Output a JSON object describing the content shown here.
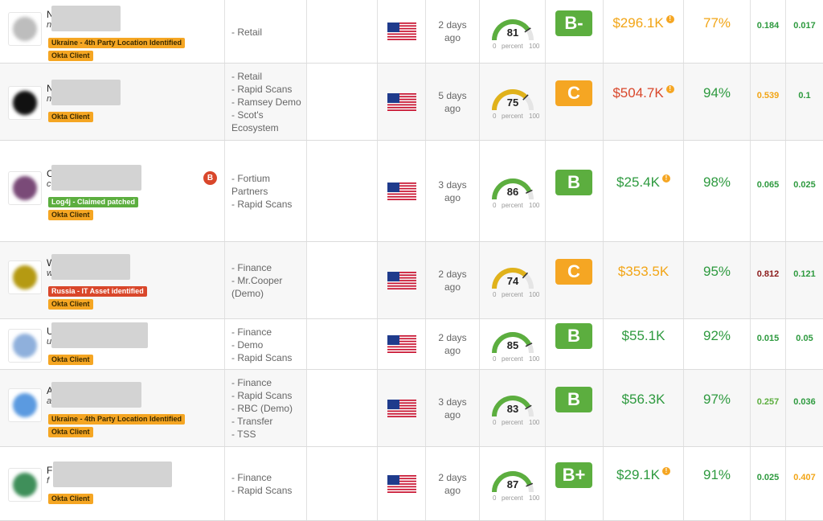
{
  "colors": {
    "green": "#2e9a3f",
    "amber": "#f2a516",
    "orange_grade": "#f5a623",
    "green_grade": "#5cae3f",
    "red": "#d9472b",
    "dark_red": "#8b1a1a",
    "light_green": "#5cae3f"
  },
  "gauge_axis": {
    "lo": "0",
    "mid": "percent",
    "hi": "100"
  },
  "rows": [
    {
      "name": "N",
      "sub": "n",
      "badges": [
        {
          "text": "Ukraine - 4th Party Location Identified",
          "color": "orange"
        },
        {
          "text": "Okta Client",
          "color": "orange"
        }
      ],
      "tags": [
        "- Retail"
      ],
      "days": "2 days",
      "ago": "ago",
      "score": "81",
      "score_num": 81,
      "grade": "B-",
      "grade_color": "#5cae3f",
      "cost": "$296.1K",
      "cost_color": "#f2a516",
      "cost_info": true,
      "pct": "77%",
      "pct_color": "#f2a516",
      "m1": "0.184",
      "m1_color": "#2e9a3f",
      "m2": "0.017",
      "m2_color": "#2e9a3f",
      "avatar_color": "#bdbdbd"
    },
    {
      "name": "N",
      "sub": "n",
      "badges": [
        {
          "text": "Okta Client",
          "color": "orange"
        }
      ],
      "tags": [
        "- Retail",
        "- Rapid Scans",
        "- Ramsey Demo",
        "- Scot's",
        "Ecosystem"
      ],
      "days": "5 days",
      "ago": "ago",
      "score": "75",
      "score_num": 75,
      "grade": "C",
      "grade_color": "#f5a623",
      "cost": "$504.7K",
      "cost_color": "#d9472b",
      "cost_info": true,
      "pct": "94%",
      "pct_color": "#2e9a3f",
      "m1": "0.539",
      "m1_color": "#f2a516",
      "m2": "0.1",
      "m2_color": "#2e9a3f",
      "avatar_color": "#111111"
    },
    {
      "name": "C",
      "sub": "c",
      "badges": [
        {
          "text": "Log4j - Claimed patched",
          "color": "green"
        },
        {
          "text": "Okta Client",
          "color": "orange"
        }
      ],
      "side_icon": "B",
      "tags": [
        "- Fortium",
        "Partners",
        "- Rapid Scans"
      ],
      "days": "3 days",
      "ago": "ago",
      "score": "86",
      "score_num": 86,
      "grade": "B",
      "grade_color": "#5cae3f",
      "cost": "$25.4K",
      "cost_color": "#2e9a3f",
      "cost_info": true,
      "pct": "98%",
      "pct_color": "#2e9a3f",
      "m1": "0.065",
      "m1_color": "#2e9a3f",
      "m2": "0.025",
      "m2_color": "#2e9a3f",
      "avatar_color": "#7a4a78"
    },
    {
      "name": "W",
      "sub": "w",
      "badges": [
        {
          "text": "Russia - IT Asset identified",
          "color": "red"
        },
        {
          "text": "Okta Client",
          "color": "orange"
        }
      ],
      "tags": [
        "- Finance",
        "- Mr.Cooper",
        "(Demo)"
      ],
      "days": "2 days",
      "ago": "ago",
      "score": "74",
      "score_num": 74,
      "grade": "C",
      "grade_color": "#f5a623",
      "cost": "$353.5K",
      "cost_color": "#f2a516",
      "cost_info": false,
      "pct": "95%",
      "pct_color": "#2e9a3f",
      "m1": "0.812",
      "m1_color": "#8b1a1a",
      "m2": "0.121",
      "m2_color": "#2e9a3f",
      "avatar_color": "#b59a12"
    },
    {
      "name": "U",
      "sub": "u",
      "badges": [
        {
          "text": "Okta Client",
          "color": "orange"
        }
      ],
      "tags": [
        "- Finance",
        "- Demo",
        "- Rapid Scans"
      ],
      "days": "2 days",
      "ago": "ago",
      "score": "85",
      "score_num": 85,
      "grade": "B",
      "grade_color": "#5cae3f",
      "cost": "$55.1K",
      "cost_color": "#2e9a3f",
      "cost_info": false,
      "pct": "92%",
      "pct_color": "#2e9a3f",
      "m1": "0.015",
      "m1_color": "#2e9a3f",
      "m2": "0.05",
      "m2_color": "#2e9a3f",
      "avatar_color": "#8fb0dc"
    },
    {
      "name": "A",
      "sub": "a",
      "badges": [
        {
          "text": "Ukraine - 4th Party Location Identified",
          "color": "orange"
        },
        {
          "text": "Okta Client",
          "color": "orange"
        }
      ],
      "tags": [
        "- Finance",
        "- Rapid Scans",
        "- RBC (Demo)",
        "- Transfer",
        "- TSS"
      ],
      "days": "3 days",
      "ago": "ago",
      "score": "83",
      "score_num": 83,
      "grade": "B",
      "grade_color": "#5cae3f",
      "cost": "$56.3K",
      "cost_color": "#2e9a3f",
      "cost_info": false,
      "pct": "97%",
      "pct_color": "#2e9a3f",
      "m1": "0.257",
      "m1_color": "#5cae3f",
      "m2": "0.036",
      "m2_color": "#2e9a3f",
      "avatar_color": "#5b9ae0"
    },
    {
      "name": "F",
      "sub": "f",
      "badges": [
        {
          "text": "Okta Client",
          "color": "orange"
        }
      ],
      "tags": [
        "- Finance",
        "- Rapid Scans"
      ],
      "days": "2 days",
      "ago": "ago",
      "score": "87",
      "score_num": 87,
      "grade": "B+",
      "grade_color": "#5cae3f",
      "cost": "$29.1K",
      "cost_color": "#2e9a3f",
      "cost_info": true,
      "pct": "91%",
      "pct_color": "#2e9a3f",
      "m1": "0.025",
      "m1_color": "#2e9a3f",
      "m2": "0.407",
      "m2_color": "#f2a516",
      "avatar_color": "#3f8f5a"
    }
  ]
}
